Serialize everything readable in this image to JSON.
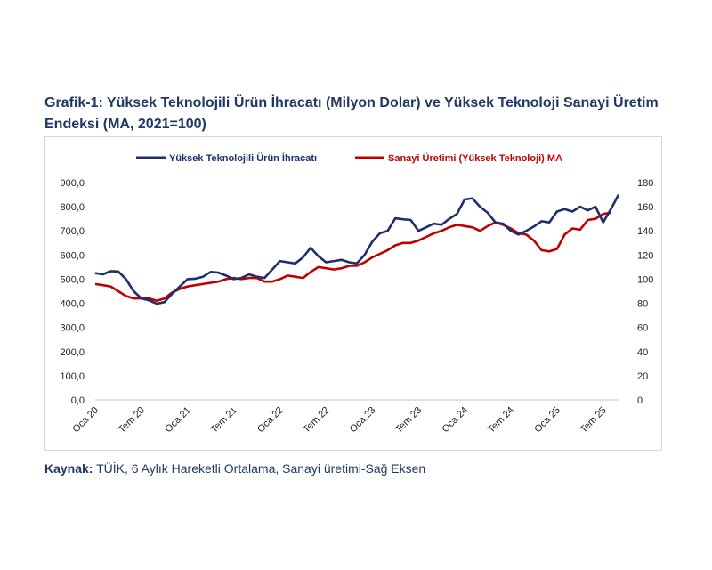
{
  "title": "Grafik-1: Yüksek Teknolojili Ürün İhracatı (Milyon Dolar) ve Yüksek Teknoloji Sanayi Üretim Endeksi (MA, 2021=100)",
  "source_label": "Kaynak:",
  "source_text": "TÜİK, 6 Aylık Hareketli Ortalama, Sanayi üretimi-Sağ Eksen",
  "colors": {
    "series1": "#1f2f6b",
    "series2": "#c00000",
    "legend1_text": "#1f2f6b",
    "legend2_text": "#c00000"
  },
  "chart_data": {
    "type": "line",
    "legend_position": "top",
    "grid": false,
    "x_tick_labels": [
      "Oca.20",
      "Tem.20",
      "Oca.21",
      "Tem.21",
      "Oca.22",
      "Tem.22",
      "Oca.23",
      "Tem.23",
      "Oca.24",
      "Tem.24",
      "Oca.25",
      "Tem.25"
    ],
    "y_left": {
      "ticks": [
        "0,0",
        "100,0",
        "200,0",
        "300,0",
        "400,0",
        "500,0",
        "600,0",
        "700,0",
        "800,0",
        "900,0"
      ],
      "lim": [
        0,
        900
      ]
    },
    "y_right": {
      "ticks": [
        "0",
        "20",
        "40",
        "60",
        "80",
        "100",
        "120",
        "140",
        "160",
        "180"
      ],
      "lim": [
        0,
        180
      ]
    },
    "series": [
      {
        "name": "Yüksek Teknolojili Ürün İhracatı",
        "axis": "left",
        "values": [
          525,
          520,
          533,
          532,
          500,
          450,
          420,
          412,
          398,
          405,
          440,
          470,
          500,
          502,
          510,
          530,
          527,
          515,
          500,
          505,
          520,
          510,
          505,
          540,
          575,
          570,
          565,
          590,
          630,
          595,
          570,
          575,
          580,
          570,
          565,
          600,
          655,
          690,
          700,
          752,
          748,
          745,
          700,
          715,
          730,
          725,
          750,
          770,
          830,
          835,
          800,
          775,
          735,
          730,
          700,
          685,
          700,
          718,
          740,
          735,
          780,
          790,
          780,
          800,
          785,
          800,
          735,
          790,
          850
        ]
      },
      {
        "name": "Sanayi Üretimi (Yüksek Teknoloji) MA",
        "axis": "right",
        "values": [
          96,
          95,
          94,
          90,
          86,
          84,
          84,
          84,
          82,
          84,
          89,
          92,
          94,
          95,
          96,
          97,
          98,
          100,
          101,
          100,
          101,
          101,
          98,
          98,
          100,
          103,
          102,
          101,
          106,
          110,
          109,
          108,
          109,
          111,
          111,
          114,
          118,
          121,
          124,
          128,
          130,
          130,
          132,
          135,
          138,
          140,
          143,
          145,
          144,
          143,
          140,
          144,
          147,
          145,
          142,
          138,
          137,
          132,
          124,
          123,
          125,
          137,
          142,
          141,
          149,
          150,
          154,
          155
        ]
      }
    ]
  }
}
